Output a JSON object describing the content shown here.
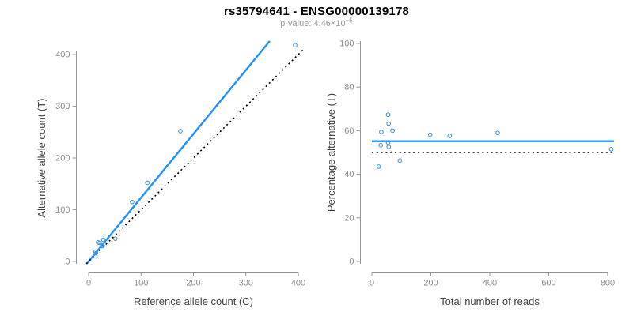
{
  "header": {
    "title": "rs35794641 - ENSG00000139178",
    "pvalue_prefix": "p-value: ",
    "pvalue_mantissa": "4.46",
    "pvalue_multiplier": "×10",
    "pvalue_exponent": "−5"
  },
  "colors": {
    "line_blue": "#1E90FF",
    "point_blue": "#4596D6",
    "black": "#000000",
    "axis_gray": "#969696",
    "tick_label_gray": "#8C8C8C",
    "axis_title_color": "#404040"
  },
  "chart_data": [
    {
      "type": "scatter",
      "panel": "left",
      "xlabel": "Reference allele count (C)",
      "ylabel": "Alternative allele count (T)",
      "xlim": [
        0,
        400
      ],
      "ylim": [
        0,
        400
      ],
      "xticks": [
        0,
        100,
        200,
        300,
        400
      ],
      "yticks": [
        0,
        100,
        200,
        300,
        400
      ],
      "grid": false,
      "points_name": "ref-vs-alt-counts",
      "points": [
        [
          13,
          10
        ],
        [
          14,
          16
        ],
        [
          13,
          19
        ],
        [
          18,
          37
        ],
        [
          21,
          36
        ],
        [
          25,
          30
        ],
        [
          27,
          30
        ],
        [
          28,
          42
        ],
        [
          51,
          44
        ],
        [
          83,
          115
        ],
        [
          112,
          152
        ],
        [
          175,
          252
        ],
        [
          394,
          418
        ]
      ],
      "lines": [
        {
          "name": "fitted-proportion-line",
          "type": "linear",
          "slope": 1.233,
          "intercept": 0,
          "style": "solid",
          "color_key": "line_blue"
        },
        {
          "name": "identity-line",
          "type": "linear",
          "slope": 1,
          "intercept": 0,
          "style": "dotted",
          "color_key": "black"
        }
      ]
    },
    {
      "type": "scatter",
      "panel": "right",
      "xlabel": "Total number of reads",
      "ylabel": "Percentage alternative (T)",
      "xlim": [
        0,
        800
      ],
      "ylim": [
        0,
        100
      ],
      "xticks": [
        0,
        200,
        400,
        600,
        800
      ],
      "yticks": [
        0,
        20,
        40,
        60,
        80,
        100
      ],
      "grid": false,
      "points_name": "coverage-vs-percentage",
      "points": [
        [
          23,
          43.5
        ],
        [
          30,
          53.3
        ],
        [
          32,
          59.4
        ],
        [
          55,
          67.3
        ],
        [
          57,
          63.2
        ],
        [
          55,
          54.5
        ],
        [
          57,
          52.6
        ],
        [
          70,
          60.0
        ],
        [
          95,
          46.3
        ],
        [
          198,
          58.1
        ],
        [
          264,
          57.6
        ],
        [
          427,
          59.0
        ],
        [
          812,
          51.5
        ]
      ],
      "lines": [
        {
          "name": "mean-percentage-line",
          "type": "horizontal",
          "y": 55.2,
          "style": "solid",
          "color_key": "line_blue"
        },
        {
          "name": "fifty-percent-reference-line",
          "type": "horizontal",
          "y": 50,
          "style": "dotted",
          "color_key": "black"
        }
      ]
    }
  ]
}
